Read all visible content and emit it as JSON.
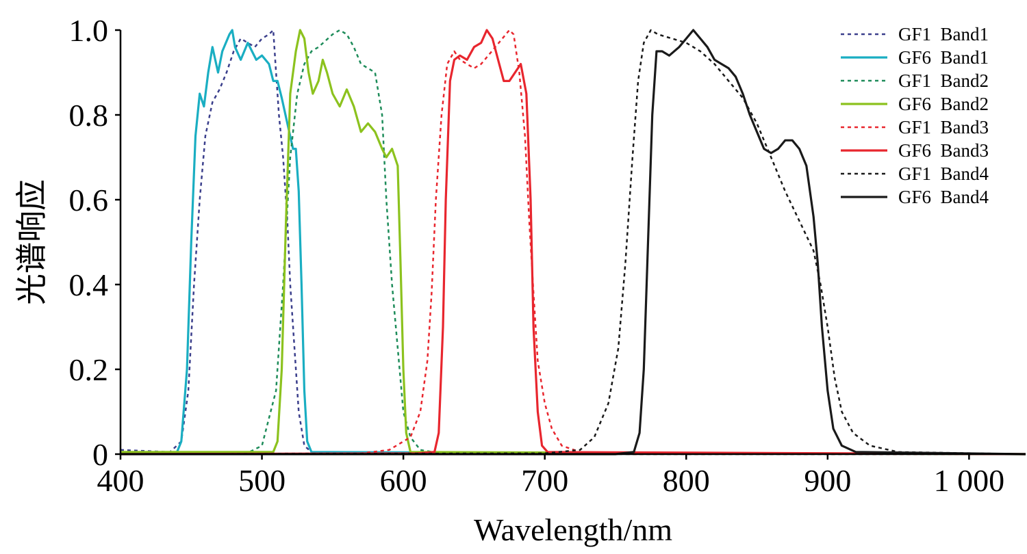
{
  "chart_data": {
    "type": "line",
    "title": "",
    "xlabel": "Wavelength/nm",
    "ylabel": "光谱响应",
    "xlim": [
      400,
      1040
    ],
    "ylim": [
      0,
      1.0
    ],
    "x_ticks": [
      400,
      500,
      600,
      700,
      800,
      900,
      1000
    ],
    "x_tick_labels": [
      "400",
      "500",
      "600",
      "700",
      "800",
      "900",
      "1 000"
    ],
    "y_ticks": [
      0,
      0.2,
      0.4,
      0.6,
      0.8,
      1.0
    ],
    "y_tick_labels": [
      "0",
      "0.2",
      "0.4",
      "0.6",
      "0.8",
      "1.0"
    ],
    "grid": false,
    "legend_position": "top-right",
    "series": [
      {
        "name": "GF1  Band1",
        "color": "#3b3f8c",
        "dash": "dotted",
        "points": [
          [
            400,
            0.01
          ],
          [
            435,
            0.005
          ],
          [
            443,
            0.03
          ],
          [
            448,
            0.15
          ],
          [
            452,
            0.4
          ],
          [
            456,
            0.6
          ],
          [
            460,
            0.75
          ],
          [
            465,
            0.83
          ],
          [
            470,
            0.86
          ],
          [
            475,
            0.9
          ],
          [
            480,
            0.95
          ],
          [
            485,
            0.98
          ],
          [
            490,
            0.97
          ],
          [
            495,
            0.96
          ],
          [
            500,
            0.98
          ],
          [
            505,
            0.99
          ],
          [
            508,
            1.0
          ],
          [
            510,
            0.9
          ],
          [
            512,
            0.8
          ],
          [
            515,
            0.7
          ],
          [
            518,
            0.55
          ],
          [
            520,
            0.4
          ],
          [
            523,
            0.25
          ],
          [
            526,
            0.1
          ],
          [
            530,
            0.02
          ],
          [
            535,
            0.005
          ],
          [
            560,
            0.002
          ],
          [
            1040,
            0.0
          ]
        ]
      },
      {
        "name": "GF6  Band1",
        "color": "#1aaec2",
        "dash": "solid",
        "points": [
          [
            400,
            0.003
          ],
          [
            440,
            0.005
          ],
          [
            443,
            0.03
          ],
          [
            447,
            0.2
          ],
          [
            450,
            0.5
          ],
          [
            453,
            0.75
          ],
          [
            456,
            0.85
          ],
          [
            459,
            0.82
          ],
          [
            462,
            0.9
          ],
          [
            465,
            0.96
          ],
          [
            469,
            0.9
          ],
          [
            472,
            0.95
          ],
          [
            477,
            0.99
          ],
          [
            479,
            1.0
          ],
          [
            481,
            0.96
          ],
          [
            485,
            0.93
          ],
          [
            490,
            0.97
          ],
          [
            493,
            0.95
          ],
          [
            496,
            0.93
          ],
          [
            500,
            0.94
          ],
          [
            505,
            0.92
          ],
          [
            508,
            0.88
          ],
          [
            511,
            0.88
          ],
          [
            514,
            0.84
          ],
          [
            518,
            0.78
          ],
          [
            522,
            0.72
          ],
          [
            524,
            0.72
          ],
          [
            526,
            0.62
          ],
          [
            528,
            0.4
          ],
          [
            530,
            0.15
          ],
          [
            532,
            0.03
          ],
          [
            535,
            0.005
          ],
          [
            1040,
            0.0
          ]
        ]
      },
      {
        "name": "GF1  Band2",
        "color": "#1e8c5a",
        "dash": "dotted",
        "points": [
          [
            400,
            0.0
          ],
          [
            490,
            0.003
          ],
          [
            500,
            0.02
          ],
          [
            510,
            0.15
          ],
          [
            515,
            0.4
          ],
          [
            520,
            0.7
          ],
          [
            525,
            0.85
          ],
          [
            530,
            0.92
          ],
          [
            535,
            0.95
          ],
          [
            540,
            0.96
          ],
          [
            550,
            0.99
          ],
          [
            555,
            1.0
          ],
          [
            560,
            0.99
          ],
          [
            565,
            0.96
          ],
          [
            570,
            0.92
          ],
          [
            580,
            0.9
          ],
          [
            585,
            0.8
          ],
          [
            588,
            0.6
          ],
          [
            592,
            0.4
          ],
          [
            596,
            0.25
          ],
          [
            600,
            0.1
          ],
          [
            605,
            0.04
          ],
          [
            612,
            0.01
          ],
          [
            630,
            0.0
          ],
          [
            1040,
            0.0
          ]
        ]
      },
      {
        "name": "GF6  Band2",
        "color": "#8cc21e",
        "dash": "solid",
        "points": [
          [
            400,
            0.005
          ],
          [
            508,
            0.005
          ],
          [
            511,
            0.03
          ],
          [
            514,
            0.2
          ],
          [
            517,
            0.55
          ],
          [
            520,
            0.85
          ],
          [
            524,
            0.95
          ],
          [
            527,
            1.0
          ],
          [
            530,
            0.98
          ],
          [
            533,
            0.9
          ],
          [
            536,
            0.85
          ],
          [
            540,
            0.88
          ],
          [
            543,
            0.93
          ],
          [
            546,
            0.9
          ],
          [
            550,
            0.85
          ],
          [
            555,
            0.82
          ],
          [
            560,
            0.86
          ],
          [
            565,
            0.82
          ],
          [
            570,
            0.76
          ],
          [
            575,
            0.78
          ],
          [
            580,
            0.76
          ],
          [
            585,
            0.72
          ],
          [
            588,
            0.7
          ],
          [
            592,
            0.72
          ],
          [
            596,
            0.68
          ],
          [
            598,
            0.45
          ],
          [
            600,
            0.2
          ],
          [
            602,
            0.05
          ],
          [
            605,
            0.005
          ],
          [
            1040,
            0.0
          ]
        ]
      },
      {
        "name": "GF1  Band3",
        "color": "#e8262e",
        "dash": "dotted",
        "points": [
          [
            400,
            0.0
          ],
          [
            570,
            0.002
          ],
          [
            590,
            0.01
          ],
          [
            605,
            0.04
          ],
          [
            612,
            0.1
          ],
          [
            617,
            0.22
          ],
          [
            620,
            0.38
          ],
          [
            623,
            0.6
          ],
          [
            627,
            0.8
          ],
          [
            631,
            0.92
          ],
          [
            636,
            0.95
          ],
          [
            640,
            0.93
          ],
          [
            645,
            0.92
          ],
          [
            650,
            0.91
          ],
          [
            655,
            0.92
          ],
          [
            660,
            0.94
          ],
          [
            665,
            0.96
          ],
          [
            670,
            0.98
          ],
          [
            675,
            1.0
          ],
          [
            678,
            0.99
          ],
          [
            682,
            0.9
          ],
          [
            686,
            0.75
          ],
          [
            689,
            0.55
          ],
          [
            692,
            0.38
          ],
          [
            695,
            0.22
          ],
          [
            700,
            0.12
          ],
          [
            705,
            0.06
          ],
          [
            712,
            0.02
          ],
          [
            725,
            0.005
          ],
          [
            760,
            0.0
          ],
          [
            1040,
            0.0
          ]
        ]
      },
      {
        "name": "GF6  Band3",
        "color": "#e8262e",
        "dash": "solid",
        "points": [
          [
            400,
            0.0
          ],
          [
            610,
            0.002
          ],
          [
            622,
            0.005
          ],
          [
            625,
            0.05
          ],
          [
            628,
            0.3
          ],
          [
            630,
            0.6
          ],
          [
            633,
            0.88
          ],
          [
            636,
            0.93
          ],
          [
            640,
            0.94
          ],
          [
            645,
            0.93
          ],
          [
            650,
            0.96
          ],
          [
            655,
            0.97
          ],
          [
            659,
            1.0
          ],
          [
            663,
            0.98
          ],
          [
            667,
            0.93
          ],
          [
            671,
            0.88
          ],
          [
            675,
            0.88
          ],
          [
            679,
            0.9
          ],
          [
            683,
            0.92
          ],
          [
            687,
            0.85
          ],
          [
            690,
            0.6
          ],
          [
            692,
            0.3
          ],
          [
            695,
            0.1
          ],
          [
            698,
            0.02
          ],
          [
            702,
            0.005
          ],
          [
            1040,
            0.0
          ]
        ]
      },
      {
        "name": "GF1  Band4",
        "color": "#1a1a1a",
        "dash": "dotted",
        "points": [
          [
            400,
            0.0
          ],
          [
            700,
            0.002
          ],
          [
            725,
            0.01
          ],
          [
            735,
            0.04
          ],
          [
            745,
            0.12
          ],
          [
            752,
            0.25
          ],
          [
            757,
            0.45
          ],
          [
            762,
            0.7
          ],
          [
            766,
            0.88
          ],
          [
            770,
            0.97
          ],
          [
            775,
            1.0
          ],
          [
            780,
            0.99
          ],
          [
            790,
            0.98
          ],
          [
            800,
            0.97
          ],
          [
            810,
            0.95
          ],
          [
            820,
            0.92
          ],
          [
            830,
            0.88
          ],
          [
            840,
            0.84
          ],
          [
            850,
            0.78
          ],
          [
            860,
            0.7
          ],
          [
            870,
            0.62
          ],
          [
            880,
            0.55
          ],
          [
            890,
            0.48
          ],
          [
            895,
            0.4
          ],
          [
            900,
            0.3
          ],
          [
            905,
            0.18
          ],
          [
            910,
            0.1
          ],
          [
            918,
            0.05
          ],
          [
            930,
            0.02
          ],
          [
            950,
            0.005
          ],
          [
            1040,
            0.0
          ]
        ]
      },
      {
        "name": "GF6  Band4",
        "color": "#1a1a1a",
        "dash": "solid",
        "points": [
          [
            400,
            0.0
          ],
          [
            750,
            0.0
          ],
          [
            763,
            0.005
          ],
          [
            767,
            0.05
          ],
          [
            770,
            0.2
          ],
          [
            773,
            0.5
          ],
          [
            776,
            0.8
          ],
          [
            779,
            0.95
          ],
          [
            783,
            0.95
          ],
          [
            788,
            0.94
          ],
          [
            795,
            0.96
          ],
          [
            800,
            0.98
          ],
          [
            805,
            1.0
          ],
          [
            810,
            0.98
          ],
          [
            815,
            0.96
          ],
          [
            820,
            0.93
          ],
          [
            825,
            0.92
          ],
          [
            830,
            0.91
          ],
          [
            835,
            0.89
          ],
          [
            840,
            0.85
          ],
          [
            845,
            0.8
          ],
          [
            850,
            0.76
          ],
          [
            855,
            0.72
          ],
          [
            860,
            0.71
          ],
          [
            865,
            0.72
          ],
          [
            870,
            0.74
          ],
          [
            875,
            0.74
          ],
          [
            880,
            0.72
          ],
          [
            885,
            0.68
          ],
          [
            890,
            0.56
          ],
          [
            893,
            0.45
          ],
          [
            896,
            0.3
          ],
          [
            900,
            0.15
          ],
          [
            904,
            0.06
          ],
          [
            910,
            0.02
          ],
          [
            920,
            0.005
          ],
          [
            1040,
            0.0
          ]
        ]
      }
    ]
  }
}
